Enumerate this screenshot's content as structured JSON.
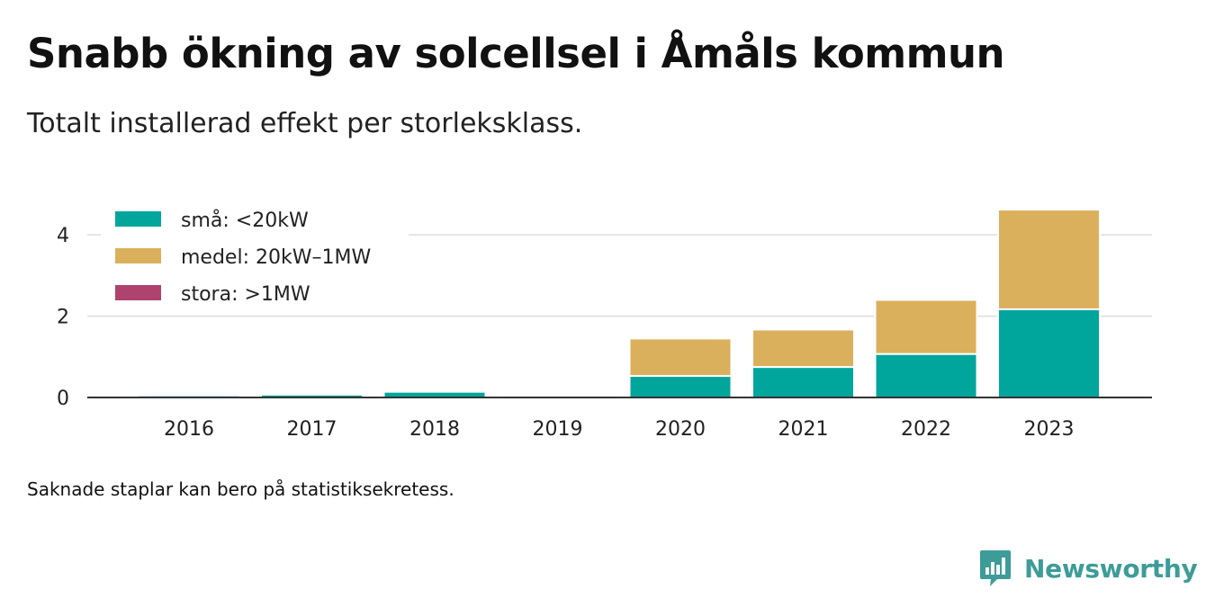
{
  "header": {
    "title": "Snabb ökning av solcellsel i Åmåls kommun",
    "subtitle": "Totalt installerad effekt per storleksklass."
  },
  "footnote": "Saknade staplar kan bero på statistiksekretess.",
  "brand": {
    "name": "Newsworthy",
    "color": "#3d9c98"
  },
  "colors": {
    "sma": "#00a69b",
    "medel": "#dbb05c",
    "stora": "#ad436e",
    "grid": "#dddddd",
    "axis": "#333333",
    "text": "#222222"
  },
  "chart_data": {
    "type": "bar",
    "stacked": true,
    "categories": [
      "2016",
      "2017",
      "2018",
      "2019",
      "2020",
      "2021",
      "2022",
      "2023"
    ],
    "series": [
      {
        "name": "små: <20kW",
        "values": [
          0.05,
          0.07,
          0.14,
          0,
          0.53,
          0.75,
          1.07,
          2.17
        ]
      },
      {
        "name": "medel: 20kW–1MW",
        "values": [
          0,
          0,
          0,
          0,
          0.92,
          0.92,
          1.33,
          2.45
        ]
      },
      {
        "name": "stora: >1MW",
        "values": [
          0,
          0,
          0,
          0,
          0,
          0,
          0,
          0
        ]
      }
    ],
    "ylim": [
      0,
      4.6
    ],
    "yticks": [
      "0",
      "2",
      "4"
    ],
    "xlabel": "",
    "ylabel": "",
    "grid": true,
    "legend_position": "top-left"
  }
}
